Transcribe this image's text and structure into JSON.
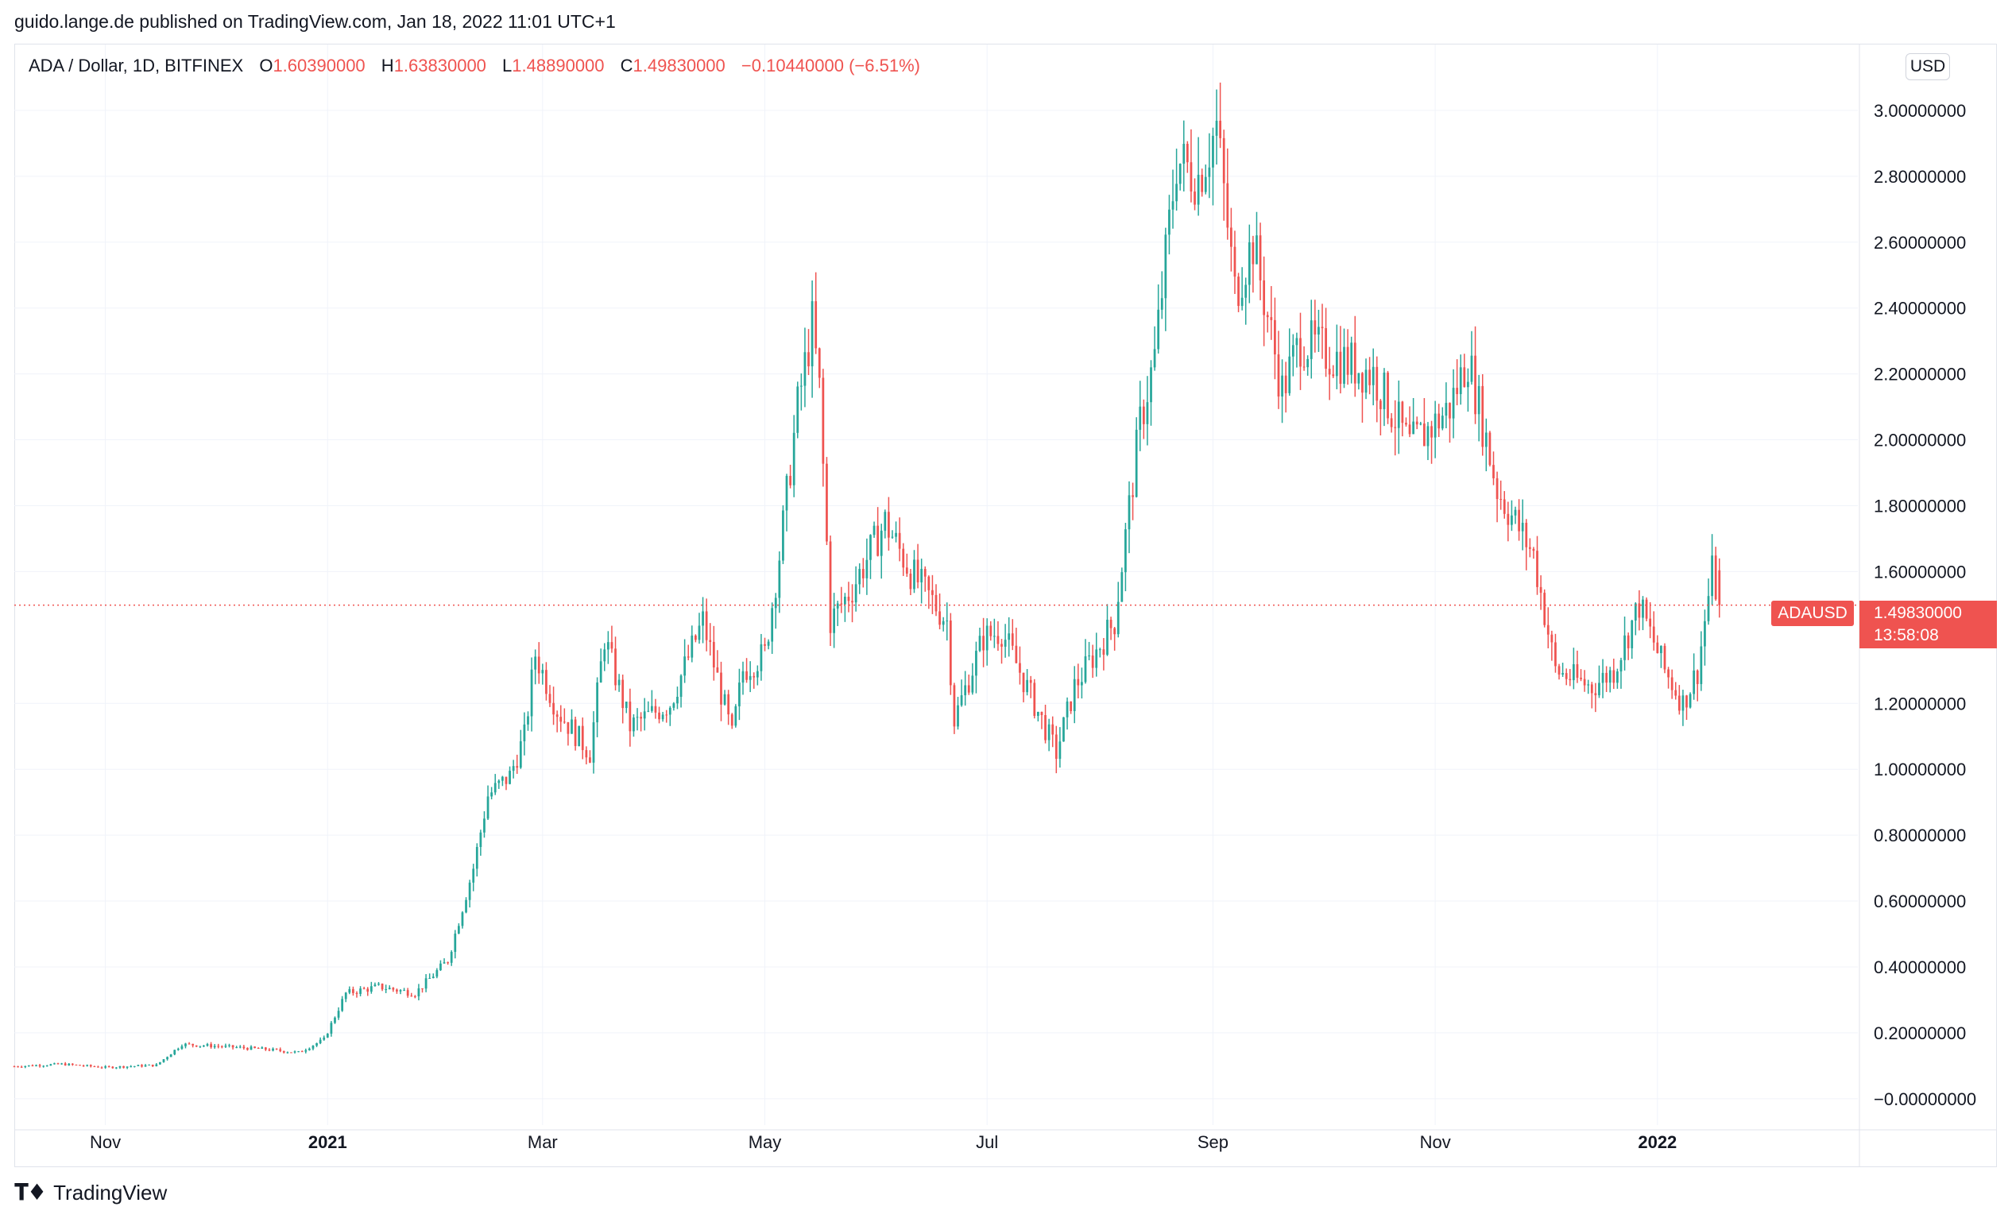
{
  "header": {
    "published_by": "guido.lange.de published on TradingView.com, Jan 18, 2022 11:01 UTC+1"
  },
  "legend": {
    "symbol": "ADA / Dollar, 1D, BITFINEX",
    "open_label": "O",
    "open": "1.60390000",
    "high_label": "H",
    "high": "1.63830000",
    "low_label": "L",
    "low": "1.48890000",
    "close_label": "C",
    "close": "1.49830000",
    "change": "−0.10440000 (−6.51%)"
  },
  "currency_badge": "USD",
  "last_price": {
    "symbol": "ADAUSD",
    "price": "1.49830000",
    "countdown": "13:58:08"
  },
  "footer": {
    "brand": "TradingView"
  },
  "colors": {
    "up": "#26a69a",
    "down": "#ef5350",
    "grid": "#f0f3fa",
    "axis_text": "#131722"
  },
  "chart_data": {
    "type": "candlestick",
    "interval": "1D",
    "x_unit": "date",
    "ylim": [
      -0.08,
      3.2
    ],
    "yticks": [
      3.0,
      2.8,
      2.6,
      2.4,
      2.2,
      2.0,
      1.8,
      1.6,
      1.2,
      1.0,
      0.8,
      0.6,
      0.4,
      0.2,
      0.0
    ],
    "ytick_labels": [
      "3.00000000",
      "2.80000000",
      "2.60000000",
      "2.40000000",
      "2.20000000",
      "2.00000000",
      "1.80000000",
      "1.60000000",
      "1.20000000",
      "1.00000000",
      "0.80000000",
      "0.60000000",
      "0.40000000",
      "0.20000000",
      "−0.00000000"
    ],
    "xticks": [
      {
        "date": "2020-11-01",
        "label": "Nov",
        "bold": false
      },
      {
        "date": "2021-01-01",
        "label": "2021",
        "bold": true
      },
      {
        "date": "2021-03-01",
        "label": "Mar",
        "bold": false
      },
      {
        "date": "2021-05-01",
        "label": "May",
        "bold": false
      },
      {
        "date": "2021-07-01",
        "label": "Jul",
        "bold": false
      },
      {
        "date": "2021-09-01",
        "label": "Sep",
        "bold": false
      },
      {
        "date": "2021-11-01",
        "label": "Nov",
        "bold": false
      },
      {
        "date": "2022-01-01",
        "label": "2022",
        "bold": true
      }
    ],
    "x_start": "2020-10-07",
    "x_end": "2022-02-25",
    "last_close": 1.4983,
    "close_series": [
      [
        "2020-10-07",
        0.098
      ],
      [
        "2020-10-20",
        0.105
      ],
      [
        "2020-11-01",
        0.095
      ],
      [
        "2020-11-15",
        0.102
      ],
      [
        "2020-11-22",
        0.165
      ],
      [
        "2020-12-01",
        0.16
      ],
      [
        "2020-12-15",
        0.15
      ],
      [
        "2020-12-24",
        0.14
      ],
      [
        "2020-12-31",
        0.18
      ],
      [
        "2021-01-06",
        0.32
      ],
      [
        "2021-01-15",
        0.34
      ],
      [
        "2021-01-25",
        0.32
      ],
      [
        "2021-02-03",
        0.42
      ],
      [
        "2021-02-10",
        0.7
      ],
      [
        "2021-02-14",
        0.92
      ],
      [
        "2021-02-20",
        0.98
      ],
      [
        "2021-02-24",
        1.1
      ],
      [
        "2021-02-27",
        1.35
      ],
      [
        "2021-03-05",
        1.18
      ],
      [
        "2021-03-14",
        1.05
      ],
      [
        "2021-03-18",
        1.4
      ],
      [
        "2021-03-25",
        1.13
      ],
      [
        "2021-04-05",
        1.2
      ],
      [
        "2021-04-14",
        1.45
      ],
      [
        "2021-04-22",
        1.1
      ],
      [
        "2021-04-25",
        1.3
      ],
      [
        "2021-05-01",
        1.35
      ],
      [
        "2021-05-05",
        1.65
      ],
      [
        "2021-05-10",
        2.1
      ],
      [
        "2021-05-14",
        2.35
      ],
      [
        "2021-05-16",
        2.15
      ],
      [
        "2021-05-19",
        1.45
      ],
      [
        "2021-05-25",
        1.55
      ],
      [
        "2021-06-03",
        1.75
      ],
      [
        "2021-06-10",
        1.6
      ],
      [
        "2021-06-20",
        1.45
      ],
      [
        "2021-06-22",
        1.15
      ],
      [
        "2021-06-30",
        1.4
      ],
      [
        "2021-07-05",
        1.42
      ],
      [
        "2021-07-20",
        1.05
      ],
      [
        "2021-07-25",
        1.25
      ],
      [
        "2021-08-05",
        1.45
      ],
      [
        "2021-08-12",
        2.05
      ],
      [
        "2021-08-16",
        2.25
      ],
      [
        "2021-08-22",
        2.85
      ],
      [
        "2021-08-28",
        2.8
      ],
      [
        "2021-09-02",
        2.95
      ],
      [
        "2021-09-07",
        2.45
      ],
      [
        "2021-09-12",
        2.6
      ],
      [
        "2021-09-20",
        2.15
      ],
      [
        "2021-09-25",
        2.3
      ],
      [
        "2021-10-05",
        2.25
      ],
      [
        "2021-10-15",
        2.2
      ],
      [
        "2021-10-25",
        1.98
      ],
      [
        "2021-11-01",
        2.05
      ],
      [
        "2021-11-05",
        2.1
      ],
      [
        "2021-11-10",
        2.25
      ],
      [
        "2021-11-18",
        1.85
      ],
      [
        "2021-11-28",
        1.65
      ],
      [
        "2021-12-04",
        1.3
      ],
      [
        "2021-12-14",
        1.25
      ],
      [
        "2021-12-20",
        1.3
      ],
      [
        "2021-12-27",
        1.5
      ],
      [
        "2022-01-03",
        1.3
      ],
      [
        "2022-01-08",
        1.2
      ],
      [
        "2022-01-12",
        1.3
      ],
      [
        "2022-01-16",
        1.6
      ],
      [
        "2022-01-18",
        1.4983
      ]
    ]
  }
}
